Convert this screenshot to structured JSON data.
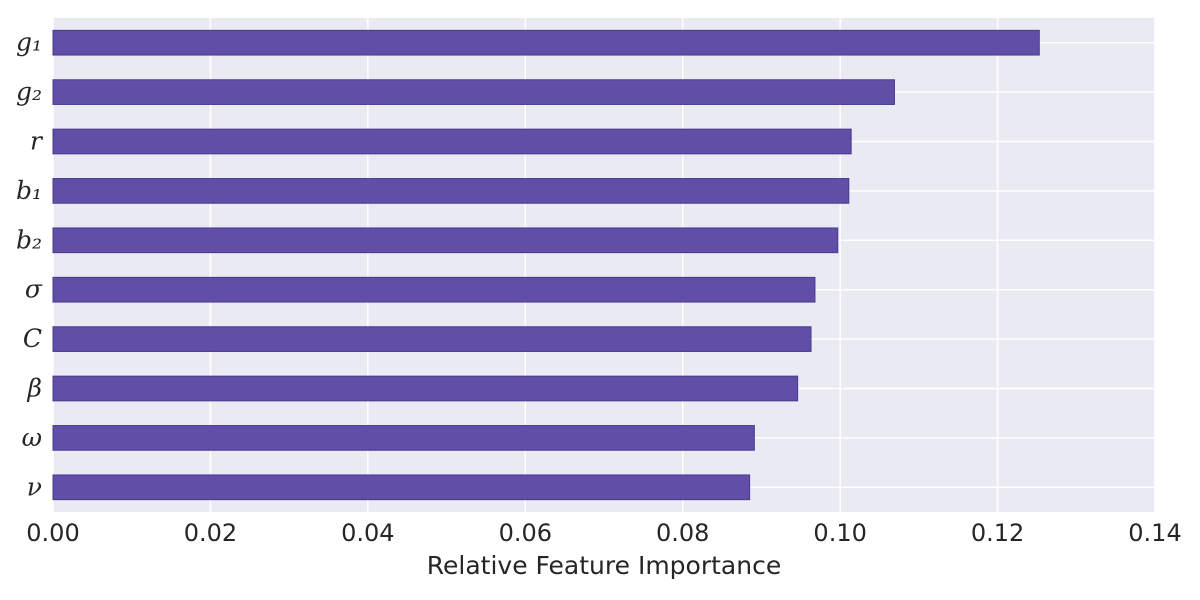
{
  "chart_data": {
    "type": "bar",
    "orientation": "horizontal",
    "categories": [
      "g₁",
      "g₂",
      "r",
      "b₁",
      "b₂",
      "σ",
      "C",
      "β",
      "ω",
      "ν"
    ],
    "values": [
      0.1253,
      0.1069,
      0.1014,
      0.1011,
      0.0997,
      0.0968,
      0.0963,
      0.0946,
      0.0891,
      0.0885
    ],
    "xlabel": "Relative Feature Importance",
    "ylabel": "",
    "title": "",
    "xlim": [
      0,
      0.14
    ],
    "xticks": [
      "0.00",
      "0.02",
      "0.04",
      "0.06",
      "0.08",
      "0.10",
      "0.12",
      "0.14"
    ],
    "grid": true,
    "legend": "none",
    "colors": {
      "bar": "#614ea7",
      "bar_edge": "#4b3a8f",
      "plot_background": "#eaeaf2",
      "grid": "#ffffff"
    }
  }
}
